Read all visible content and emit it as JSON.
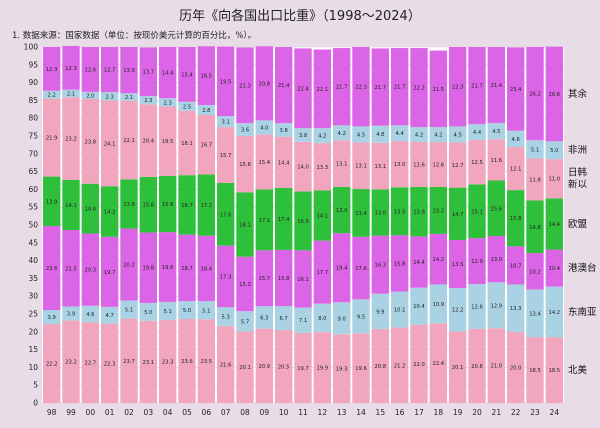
{
  "title": "历年《向各国出口比重》（1998～2024）",
  "note": "1. 数据来源：国家数据（单位：按现价美元计算的百分比，%）。",
  "colors": {
    "北美": "#f1a6bd",
    "东南亚": "#a9d3e4",
    "港澳台": "#dc64e6",
    "欧盟": "#2fc03b",
    "日韩新以": "#f1a6bd",
    "非洲": "#a9d3e4",
    "其余": "#dc64e6"
  },
  "chart_data": {
    "type": "bar",
    "stacked": true,
    "categories": [
      "98",
      "99",
      "00",
      "01",
      "02",
      "03",
      "04",
      "05",
      "06",
      "07",
      "08",
      "09",
      "10",
      "11",
      "12",
      "13",
      "14",
      "15",
      "16",
      "17",
      "18",
      "19",
      "20",
      "21",
      "22",
      "23",
      "24"
    ],
    "yticks": [
      0,
      5,
      10,
      15,
      20,
      25,
      30,
      35,
      40,
      45,
      50,
      55,
      60,
      65,
      70,
      75,
      80,
      85,
      90,
      95,
      100
    ],
    "ylim": [
      0,
      100
    ],
    "series": [
      {
        "name": "北美",
        "values": [
          22.2,
          23.2,
          22.7,
          22.3,
          23.7,
          23.1,
          23.3,
          23.6,
          23.5,
          21.6,
          20.1,
          20.9,
          20.5,
          19.7,
          19.9,
          19.3,
          19.6,
          20.8,
          21.2,
          22.0,
          22.4,
          20.1,
          20.8,
          21.0,
          20.0,
          18.5,
          18.5
        ]
      },
      {
        "name": "东南亚",
        "values": [
          3.9,
          3.9,
          4.6,
          4.7,
          5.1,
          5.0,
          5.1,
          5.0,
          5.1,
          5.3,
          5.7,
          6.3,
          6.7,
          7.1,
          8.0,
          9.0,
          9.5,
          9.9,
          10.1,
          10.4,
          10.9,
          12.2,
          12.6,
          12.9,
          13.3,
          13.4,
          14.2
        ]
      },
      {
        "name": "港澳台",
        "values": [
          23.6,
          21.5,
          20.3,
          19.7,
          20.2,
          19.8,
          19.6,
          18.7,
          18.4,
          17.3,
          15.3,
          15.7,
          15.8,
          16.1,
          17.7,
          19.4,
          17.6,
          16.3,
          15.8,
          14.4,
          14.2,
          13.5,
          12.9,
          13.0,
          10.7,
          10.2,
          10.4
        ]
      },
      {
        "name": "欧盟",
        "values": [
          13.9,
          14.1,
          14.0,
          14.2,
          13.8,
          15.6,
          15.8,
          16.7,
          17.2,
          17.6,
          18.1,
          17.1,
          17.4,
          16.5,
          14.1,
          13.0,
          13.4,
          13.0,
          13.5,
          13.9,
          13.2,
          14.7,
          15.1,
          15.6,
          15.8,
          14.8,
          14.4
        ]
      },
      {
        "name": "日韩新以",
        "values": [
          21.9,
          23.2,
          23.8,
          24.1,
          22.1,
          20.4,
          19.5,
          18.1,
          16.7,
          15.7,
          15.8,
          15.4,
          14.4,
          14.0,
          13.3,
          13.1,
          13.1,
          13.1,
          13.0,
          12.6,
          12.6,
          12.7,
          12.5,
          11.6,
          12.1,
          11.8,
          11.0
        ]
      },
      {
        "name": "非洲",
        "values": [
          2.2,
          2.1,
          2.0,
          2.3,
          2.1,
          2.3,
          2.3,
          2.5,
          2.8,
          3.1,
          3.6,
          4.0,
          3.8,
          3.8,
          4.2,
          4.2,
          4.5,
          4.8,
          4.4,
          4.2,
          4.2,
          4.5,
          4.4,
          4.5,
          4.6,
          5.1,
          5.0
        ]
      },
      {
        "name": "其余",
        "values": [
          12.3,
          12.3,
          12.6,
          12.7,
          13.0,
          13.7,
          14.4,
          15.4,
          16.5,
          19.5,
          21.3,
          20.8,
          21.4,
          22.4,
          22.1,
          21.7,
          22.3,
          21.7,
          21.7,
          22.2,
          21.5,
          22.3,
          21.7,
          21.4,
          23.4,
          26.2,
          26.6
        ]
      }
    ],
    "legend_position": "right"
  }
}
